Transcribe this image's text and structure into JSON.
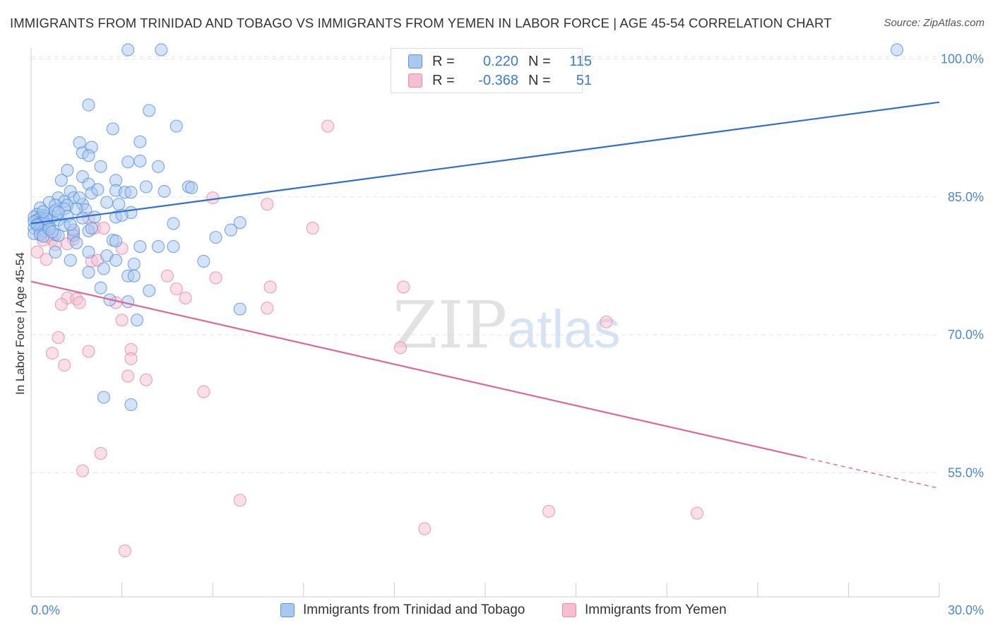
{
  "header": {
    "title": "IMMIGRANTS FROM TRINIDAD AND TOBAGO VS IMMIGRANTS FROM YEMEN IN LABOR FORCE | AGE 45-54 CORRELATION CHART",
    "source": "Source: ZipAtlas.com"
  },
  "watermark": {
    "zip": "ZIP",
    "atlas": "atlas"
  },
  "legend": {
    "rows": [
      {
        "r_label": "R =",
        "r_value": "0.220",
        "n_label": "N =",
        "n_value": "115"
      },
      {
        "r_label": "R =",
        "r_value": "-0.368",
        "n_label": "N =",
        "n_value": "51"
      }
    ]
  },
  "colors": {
    "series1_fill": "#a9c8ef",
    "series1_stroke": "#5b93dc",
    "series1_line": "#2f6fcf",
    "series2_fill": "#f6bfd1",
    "series2_stroke": "#e88aaa",
    "series2_line": "#e06794",
    "tick_label": "#4a86d8",
    "grid": "#e3e3e3"
  },
  "chart_data": {
    "type": "scatter",
    "title": "IMMIGRANTS FROM TRINIDAD AND TOBAGO VS IMMIGRANTS FROM YEMEN IN LABOR FORCE | AGE 45-54 CORRELATION CHART",
    "xlabel": "",
    "ylabel": "In Labor Force | Age 45-54",
    "xlim": [
      0,
      30
    ],
    "ylim": [
      41.5,
      101.5
    ],
    "x_ticks": [
      {
        "value": 0,
        "label": "0.0%"
      },
      {
        "value": 30,
        "label": "30.0%"
      }
    ],
    "y_ticks": [
      {
        "value": 100,
        "label": "100.0%"
      },
      {
        "value": 85,
        "label": "85.0%"
      },
      {
        "value": 70,
        "label": "70.0%"
      },
      {
        "value": 55,
        "label": "55.0%"
      }
    ],
    "grid": true,
    "legend_position": "top-center",
    "series": [
      {
        "name": "Immigrants from Trinidad and Tobago",
        "stats": {
          "R": 0.22,
          "N": 115
        },
        "trend": {
          "x": [
            0,
            30
          ],
          "y": [
            82.1,
            95.3
          ],
          "dashed_from": null
        },
        "points": [
          [
            3.2,
            101
          ],
          [
            4.3,
            101
          ],
          [
            28.6,
            101
          ],
          [
            1.9,
            95
          ],
          [
            3.9,
            94.4
          ],
          [
            2.7,
            92.4
          ],
          [
            4.8,
            92.7
          ],
          [
            1.6,
            90.9
          ],
          [
            3.6,
            91
          ],
          [
            1.7,
            89.8
          ],
          [
            2.0,
            90.4
          ],
          [
            1.9,
            89.5
          ],
          [
            3.2,
            88.8
          ],
          [
            3.6,
            88.9
          ],
          [
            2.3,
            88.3
          ],
          [
            4.2,
            88.3
          ],
          [
            1.2,
            87.9
          ],
          [
            1.7,
            87.2
          ],
          [
            1.0,
            86.8
          ],
          [
            2.8,
            86.8
          ],
          [
            1.9,
            86.4
          ],
          [
            3.8,
            86.1
          ],
          [
            5.2,
            86.1
          ],
          [
            5.3,
            86
          ],
          [
            1.3,
            85.6
          ],
          [
            2.8,
            85.7
          ],
          [
            4.4,
            85.6
          ],
          [
            3.1,
            85.5
          ],
          [
            3.3,
            85.5
          ],
          [
            2.0,
            85.4
          ],
          [
            0.9,
            84.9
          ],
          [
            1.4,
            84.9
          ],
          [
            1.1,
            84.5
          ],
          [
            0.6,
            84.4
          ],
          [
            0.8,
            84.1
          ],
          [
            1.2,
            84.1
          ],
          [
            1.7,
            84.2
          ],
          [
            2.9,
            84.2
          ],
          [
            0.3,
            83.8
          ],
          [
            1.1,
            83.7
          ],
          [
            1.8,
            83.6
          ],
          [
            3.3,
            83.3
          ],
          [
            0.2,
            83.1
          ],
          [
            0.4,
            83.0
          ],
          [
            0.5,
            82.9
          ],
          [
            0.7,
            82.8
          ],
          [
            0.1,
            82.8
          ],
          [
            1.2,
            82.9
          ],
          [
            0.3,
            82.7
          ],
          [
            0.2,
            82.5
          ],
          [
            0.4,
            82.4
          ],
          [
            0.9,
            82.5
          ],
          [
            1.7,
            82.7
          ],
          [
            0.1,
            82.3
          ],
          [
            0.3,
            82.1
          ],
          [
            0.5,
            82.0
          ],
          [
            0.2,
            81.9
          ],
          [
            0.6,
            81.8
          ],
          [
            0.1,
            81.6
          ],
          [
            0.3,
            81.5
          ],
          [
            0.4,
            81.3
          ],
          [
            2.8,
            82.8
          ],
          [
            4.7,
            82.1
          ],
          [
            6.9,
            82.2
          ],
          [
            1.1,
            81.9
          ],
          [
            0.1,
            81.0
          ],
          [
            0.3,
            80.9
          ],
          [
            0.8,
            80.9
          ],
          [
            0.9,
            80.8
          ],
          [
            1.4,
            80.8
          ],
          [
            0.4,
            80.7
          ],
          [
            1.9,
            81.3
          ],
          [
            2.0,
            81.6
          ],
          [
            6.6,
            81.4
          ],
          [
            1.4,
            81.4
          ],
          [
            2.7,
            80.3
          ],
          [
            2.8,
            80.2
          ],
          [
            6.1,
            80.6
          ],
          [
            1.5,
            80.0
          ],
          [
            3.6,
            79.6
          ],
          [
            4.2,
            79.6
          ],
          [
            4.7,
            79.6
          ],
          [
            0.8,
            79.0
          ],
          [
            1.9,
            79.0
          ],
          [
            2.5,
            78.6
          ],
          [
            1.3,
            78.1
          ],
          [
            2.8,
            78.1
          ],
          [
            3.4,
            77.7
          ],
          [
            5.7,
            78
          ],
          [
            2.4,
            77.2
          ],
          [
            1.9,
            76.8
          ],
          [
            3.2,
            76.4
          ],
          [
            3.4,
            76.4
          ],
          [
            2.3,
            75.1
          ],
          [
            3.9,
            74.8
          ],
          [
            2.6,
            73.8
          ],
          [
            3.2,
            73.6
          ],
          [
            6.9,
            72.8
          ],
          [
            3.5,
            71.6
          ],
          [
            2.4,
            63.2
          ],
          [
            3.3,
            62.4
          ],
          [
            0.5,
            82.6
          ],
          [
            0.2,
            82.0
          ],
          [
            0.6,
            81.5
          ],
          [
            0.8,
            83.5
          ],
          [
            1.5,
            83.7
          ],
          [
            2.5,
            84.4
          ],
          [
            3.0,
            83.0
          ],
          [
            1.6,
            84.9
          ],
          [
            2.2,
            85.8
          ],
          [
            0.9,
            83.3
          ],
          [
            1.3,
            82.0
          ],
          [
            0.4,
            83.4
          ],
          [
            2.1,
            82.8
          ],
          [
            0.7,
            81.2
          ]
        ]
      },
      {
        "name": "Immigrants from Yemen",
        "stats": {
          "R": -0.368,
          "N": 51
        },
        "trend": {
          "x": [
            0,
            30
          ],
          "y": [
            75.8,
            53.3
          ],
          "dashed_from": 25.5
        },
        "points": [
          [
            9.8,
            92.7
          ],
          [
            6.0,
            84.9
          ],
          [
            7.8,
            84.2
          ],
          [
            9.3,
            81.6
          ],
          [
            0.3,
            81.0
          ],
          [
            0.5,
            80.7
          ],
          [
            0.4,
            80.3
          ],
          [
            0.7,
            80.4
          ],
          [
            1.4,
            80.4
          ],
          [
            2.1,
            81.6
          ],
          [
            2.4,
            81.6
          ],
          [
            1.9,
            82.7
          ],
          [
            1.4,
            81.1
          ],
          [
            0.8,
            79.8
          ],
          [
            0.2,
            79.0
          ],
          [
            0.5,
            78.2
          ],
          [
            2.0,
            78.0
          ],
          [
            2.2,
            78.1
          ],
          [
            3.0,
            79.4
          ],
          [
            4.5,
            76.4
          ],
          [
            6.1,
            76.2
          ],
          [
            4.8,
            75.0
          ],
          [
            7.9,
            75.2
          ],
          [
            12.3,
            75.2
          ],
          [
            5.1,
            74.0
          ],
          [
            1.2,
            74.0
          ],
          [
            1.5,
            73.9
          ],
          [
            1.6,
            73.5
          ],
          [
            1.0,
            73.3
          ],
          [
            2.8,
            73.5
          ],
          [
            7.8,
            72.9
          ],
          [
            3.0,
            71.6
          ],
          [
            19.0,
            71.4
          ],
          [
            0.9,
            69.7
          ],
          [
            3.3,
            68.4
          ],
          [
            12.2,
            68.6
          ],
          [
            1.9,
            68.2
          ],
          [
            0.7,
            68.0
          ],
          [
            3.3,
            67.4
          ],
          [
            1.1,
            66.7
          ],
          [
            3.2,
            65.5
          ],
          [
            3.8,
            65.1
          ],
          [
            5.7,
            63.8
          ],
          [
            2.3,
            57.1
          ],
          [
            1.7,
            55.2
          ],
          [
            6.9,
            52.0
          ],
          [
            17.1,
            50.8
          ],
          [
            22.0,
            50.6
          ],
          [
            13.0,
            48.9
          ],
          [
            3.1,
            46.5
          ],
          [
            1.2,
            79.9
          ]
        ]
      }
    ]
  }
}
